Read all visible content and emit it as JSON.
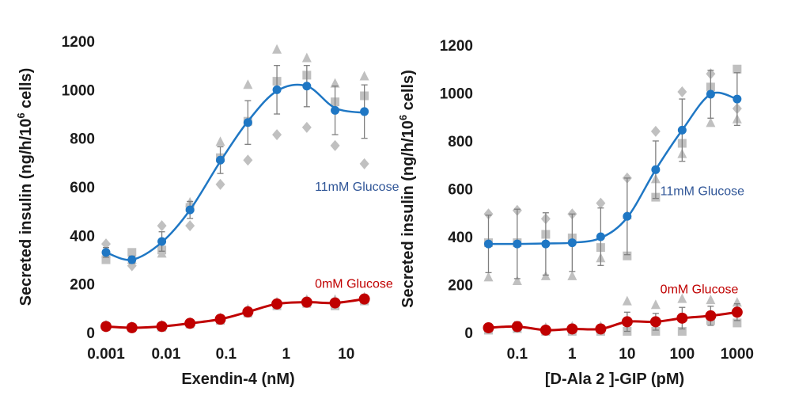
{
  "chart_data": [
    {
      "type": "scatter",
      "xlabel": "Exendin-4 (nM)",
      "ylabel": "Secreted insulin (ng/h/10",
      "ylabel_sup": "6",
      "ylabel_suffix": " cells)",
      "xscale": "log",
      "xlim": [
        0.001,
        25
      ],
      "ylim": [
        0,
        1200
      ],
      "yticks": [
        0,
        200,
        400,
        600,
        800,
        1000,
        1200
      ],
      "xticks": [
        {
          "value": 0.001,
          "label": "0.001"
        },
        {
          "value": 0.01,
          "label": "0.01"
        },
        {
          "value": 0.1,
          "label": "0.1"
        },
        {
          "value": 1,
          "label": "1"
        },
        {
          "value": 10,
          "label": "10"
        }
      ],
      "series": [
        {
          "name": "11mM Glucose",
          "label": "11mM Glucose",
          "color": "#1f77c4",
          "label_color": "#2f5597",
          "label_at": {
            "x": 3,
            "y": 600
          },
          "x": [
            0.001,
            0.0027,
            0.0085,
            0.025,
            0.08,
            0.23,
            0.7,
            2.2,
            6.5,
            20
          ],
          "mean": [
            330,
            300,
            375,
            505,
            710,
            865,
            1000,
            1015,
            915,
            910
          ],
          "err": [
            20,
            15,
            40,
            35,
            55,
            90,
            100,
            85,
            100,
            110
          ],
          "fit": [
            330,
            300,
            372,
            505,
            705,
            870,
            995,
            1015,
            925,
            905
          ]
        },
        {
          "name": "0mM Glucose",
          "label": "0mM Glucose",
          "color": "#c00000",
          "label_color": "#c00000",
          "label_at": {
            "x": 3,
            "y": 200
          },
          "x": [
            0.001,
            0.0027,
            0.0085,
            0.025,
            0.08,
            0.23,
            0.7,
            2.2,
            6.5,
            20
          ],
          "mean": [
            25,
            20,
            25,
            38,
            55,
            85,
            118,
            125,
            122,
            138
          ],
          "err": [
            5,
            5,
            8,
            10,
            10,
            15,
            15,
            12,
            15,
            15
          ],
          "fit": [
            25,
            20,
            25,
            38,
            55,
            85,
            118,
            125,
            122,
            138
          ]
        }
      ],
      "replicates": [
        {
          "shape": "diamond",
          "x": [
            0.001,
            0.0027,
            0.0085,
            0.025,
            0.08,
            0.23,
            0.7,
            2.2,
            6.5,
            20
          ],
          "y": [
            365,
            275,
            440,
            440,
            610,
            710,
            815,
            845,
            770,
            695
          ]
        },
        {
          "shape": "square",
          "x": [
            0.001,
            0.0027,
            0.0085,
            0.025,
            0.08,
            0.23,
            0.7,
            2.2,
            6.5,
            20
          ],
          "y": [
            300,
            330,
            340,
            515,
            720,
            870,
            1035,
            1060,
            950,
            975
          ]
        },
        {
          "shape": "triangle",
          "x": [
            0.001,
            0.0027,
            0.0085,
            0.025,
            0.08,
            0.23,
            0.7,
            2.2,
            6.5,
            20
          ],
          "y": [
            325,
            300,
            325,
            535,
            785,
            1020,
            1165,
            1130,
            1025,
            1055
          ]
        },
        {
          "shape": "square",
          "x": [
            0.001,
            0.0027,
            0.0085,
            0.025,
            0.08,
            0.23,
            0.7,
            2.2,
            6.5,
            20
          ],
          "y": [
            25,
            20,
            22,
            35,
            50,
            80,
            110,
            120,
            110,
            130
          ]
        },
        {
          "shape": "triangle",
          "x": [
            0.001,
            0.0027,
            0.0085,
            0.025,
            0.08,
            0.23,
            0.7,
            2.2,
            6.5,
            20
          ],
          "y": [
            30,
            25,
            30,
            42,
            60,
            95,
            125,
            135,
            135,
            145
          ]
        }
      ]
    },
    {
      "type": "scatter",
      "xlabel": "[D-Ala 2 ]-GIP (pM)",
      "ylabel": "Secreted insulin (ng/h/10",
      "ylabel_sup": "6",
      "ylabel_suffix": " cells)",
      "xscale": "log",
      "xlim": [
        0.025,
        1400
      ],
      "ylim": [
        0,
        1200
      ],
      "yticks": [
        0,
        200,
        400,
        600,
        800,
        1000,
        1200
      ],
      "xticks": [
        {
          "value": 0.1,
          "label": "0.1"
        },
        {
          "value": 1,
          "label": "1"
        },
        {
          "value": 10,
          "label": "10"
        },
        {
          "value": 100,
          "label": "100"
        },
        {
          "value": 1000,
          "label": "1000"
        }
      ],
      "series": [
        {
          "name": "11mM Glucose",
          "label": "11mM Glucose",
          "color": "#1f77c4",
          "label_color": "#2f5597",
          "label_at": {
            "x": 40,
            "y": 590
          },
          "x": [
            0.03,
            0.1,
            0.33,
            1,
            3.3,
            10,
            33,
            100,
            330,
            1000
          ],
          "mean": [
            370,
            370,
            370,
            375,
            400,
            485,
            680,
            845,
            995,
            975
          ],
          "err": [
            120,
            145,
            130,
            120,
            120,
            160,
            120,
            130,
            100,
            110
          ],
          "fit": [
            370,
            370,
            372,
            375,
            395,
            480,
            680,
            845,
            995,
            975
          ]
        },
        {
          "name": "0mM Glucose",
          "label": "0mM Glucose",
          "color": "#c00000",
          "label_color": "#c00000",
          "label_at": {
            "x": 40,
            "y": 180
          },
          "x": [
            0.03,
            0.1,
            0.33,
            1,
            3.3,
            10,
            33,
            100,
            330,
            1000
          ],
          "mean": [
            20,
            25,
            10,
            15,
            15,
            45,
            45,
            60,
            70,
            85
          ],
          "err": [
            15,
            20,
            10,
            10,
            10,
            40,
            35,
            45,
            40,
            35
          ],
          "fit": [
            20,
            25,
            10,
            15,
            15,
            45,
            45,
            60,
            70,
            85
          ]
        }
      ],
      "replicates": [
        {
          "shape": "diamond",
          "x": [
            0.03,
            0.1,
            0.33,
            1,
            3.3,
            10,
            33,
            100,
            330,
            1000
          ],
          "y": [
            495,
            510,
            475,
            495,
            540,
            645,
            840,
            1005,
            1080,
            935
          ]
        },
        {
          "shape": "square",
          "x": [
            0.03,
            0.1,
            0.33,
            1,
            3.3,
            10,
            33,
            100,
            330,
            1000
          ],
          "y": [
            375,
            375,
            410,
            395,
            355,
            320,
            565,
            790,
            1025,
            1100
          ]
        },
        {
          "shape": "triangle",
          "x": [
            0.03,
            0.1,
            0.33,
            1,
            3.3,
            10,
            33,
            100,
            330,
            1000
          ],
          "y": [
            230,
            215,
            235,
            235,
            310,
            490,
            640,
            745,
            875,
            890
          ]
        },
        {
          "shape": "triangle",
          "x": [
            0.03,
            0.1,
            0.33,
            1,
            3.3,
            10,
            33,
            100,
            330,
            1000
          ],
          "y": [
            20,
            15,
            20,
            25,
            25,
            130,
            115,
            140,
            135,
            125
          ]
        },
        {
          "shape": "square",
          "x": [
            0.03,
            0.1,
            0.33,
            1,
            3.3,
            10,
            33,
            100,
            330,
            1000
          ],
          "y": [
            10,
            20,
            5,
            5,
            5,
            5,
            5,
            5,
            50,
            40
          ]
        }
      ]
    }
  ]
}
